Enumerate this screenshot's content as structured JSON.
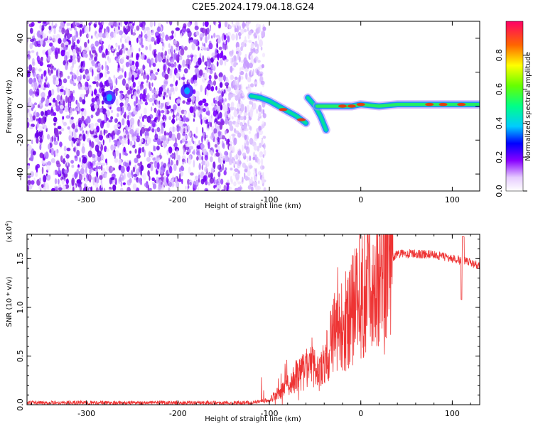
{
  "title": "C2E5.2024.179.04.18.G24",
  "chart_data": [
    {
      "type": "heatmap",
      "xlabel": "Height of straight line (km)",
      "ylabel": "Frequency (Hz)",
      "xlim": [
        -365,
        130
      ],
      "ylim": [
        -50,
        50
      ],
      "x_ticks": [
        -300,
        -200,
        -100,
        0,
        100
      ],
      "y_ticks": [
        -40,
        -20,
        0,
        20,
        40
      ],
      "noise_region_x": [
        -365,
        -105
      ],
      "track": [
        {
          "x": -120,
          "f": 6
        },
        {
          "x": -100,
          "f": 3
        },
        {
          "x": -90,
          "f": 0
        },
        {
          "x": -80,
          "f": -3
        },
        {
          "x": -70,
          "f": -6
        },
        {
          "x": -60,
          "f": -10
        },
        {
          "x": -55,
          "f": 3
        },
        {
          "x": -45,
          "f": -6
        },
        {
          "x": -38,
          "f": -14
        },
        {
          "x": -40,
          "f": 0
        },
        {
          "x": -20,
          "f": 0
        },
        {
          "x": 0,
          "f": 1
        },
        {
          "x": 20,
          "f": 0
        },
        {
          "x": 40,
          "f": 1
        },
        {
          "x": 60,
          "f": 1
        },
        {
          "x": 80,
          "f": 1
        },
        {
          "x": 100,
          "f": 1
        },
        {
          "x": 120,
          "f": 1
        }
      ],
      "hotspots": [
        {
          "x": -275,
          "f": 5
        },
        {
          "x": -190,
          "f": 9
        }
      ],
      "colorbar": {
        "label": "Normalized spectral amplitude",
        "ticks": [
          0.0,
          0.2,
          0.4,
          0.6,
          0.8
        ],
        "tick_labels": [
          "0.0",
          "0.2",
          "0.4",
          "0.6",
          "0.8"
        ],
        "range": [
          0.0,
          1.0
        ]
      }
    },
    {
      "type": "line",
      "xlabel": "Height of straight line (km)",
      "ylabel": "SNR (10 * v/v)",
      "exponent_label": "(x10",
      "exponent_power": "4",
      "exponent_close": ")",
      "xlim": [
        -365,
        130
      ],
      "ylim": [
        0.0,
        1.75
      ],
      "x_ticks": [
        -300,
        -200,
        -100,
        0,
        100
      ],
      "y_ticks": [
        0.0,
        0.5,
        1.0,
        1.5
      ],
      "y_tick_labels": [
        "0.0",
        "0.5",
        "1.0",
        "1.5"
      ],
      "color": "#ee3333",
      "series_envelope": [
        {
          "x": -365,
          "y": 0.02
        },
        {
          "x": -200,
          "y": 0.02
        },
        {
          "x": -120,
          "y": 0.02
        },
        {
          "x": -100,
          "y": 0.05
        },
        {
          "x": -85,
          "y": 0.15
        },
        {
          "x": -70,
          "y": 0.3
        },
        {
          "x": -55,
          "y": 0.4
        },
        {
          "x": -45,
          "y": 0.3
        },
        {
          "x": -35,
          "y": 0.55
        },
        {
          "x": -25,
          "y": 0.9
        },
        {
          "x": -15,
          "y": 0.85
        },
        {
          "x": -5,
          "y": 1.05
        },
        {
          "x": 5,
          "y": 1.2
        },
        {
          "x": 15,
          "y": 1.3
        },
        {
          "x": 25,
          "y": 1.45
        },
        {
          "x": 40,
          "y": 1.55
        },
        {
          "x": 60,
          "y": 1.55
        },
        {
          "x": 80,
          "y": 1.54
        },
        {
          "x": 100,
          "y": 1.5
        },
        {
          "x": 115,
          "y": 1.47
        },
        {
          "x": 130,
          "y": 1.43
        }
      ]
    }
  ]
}
